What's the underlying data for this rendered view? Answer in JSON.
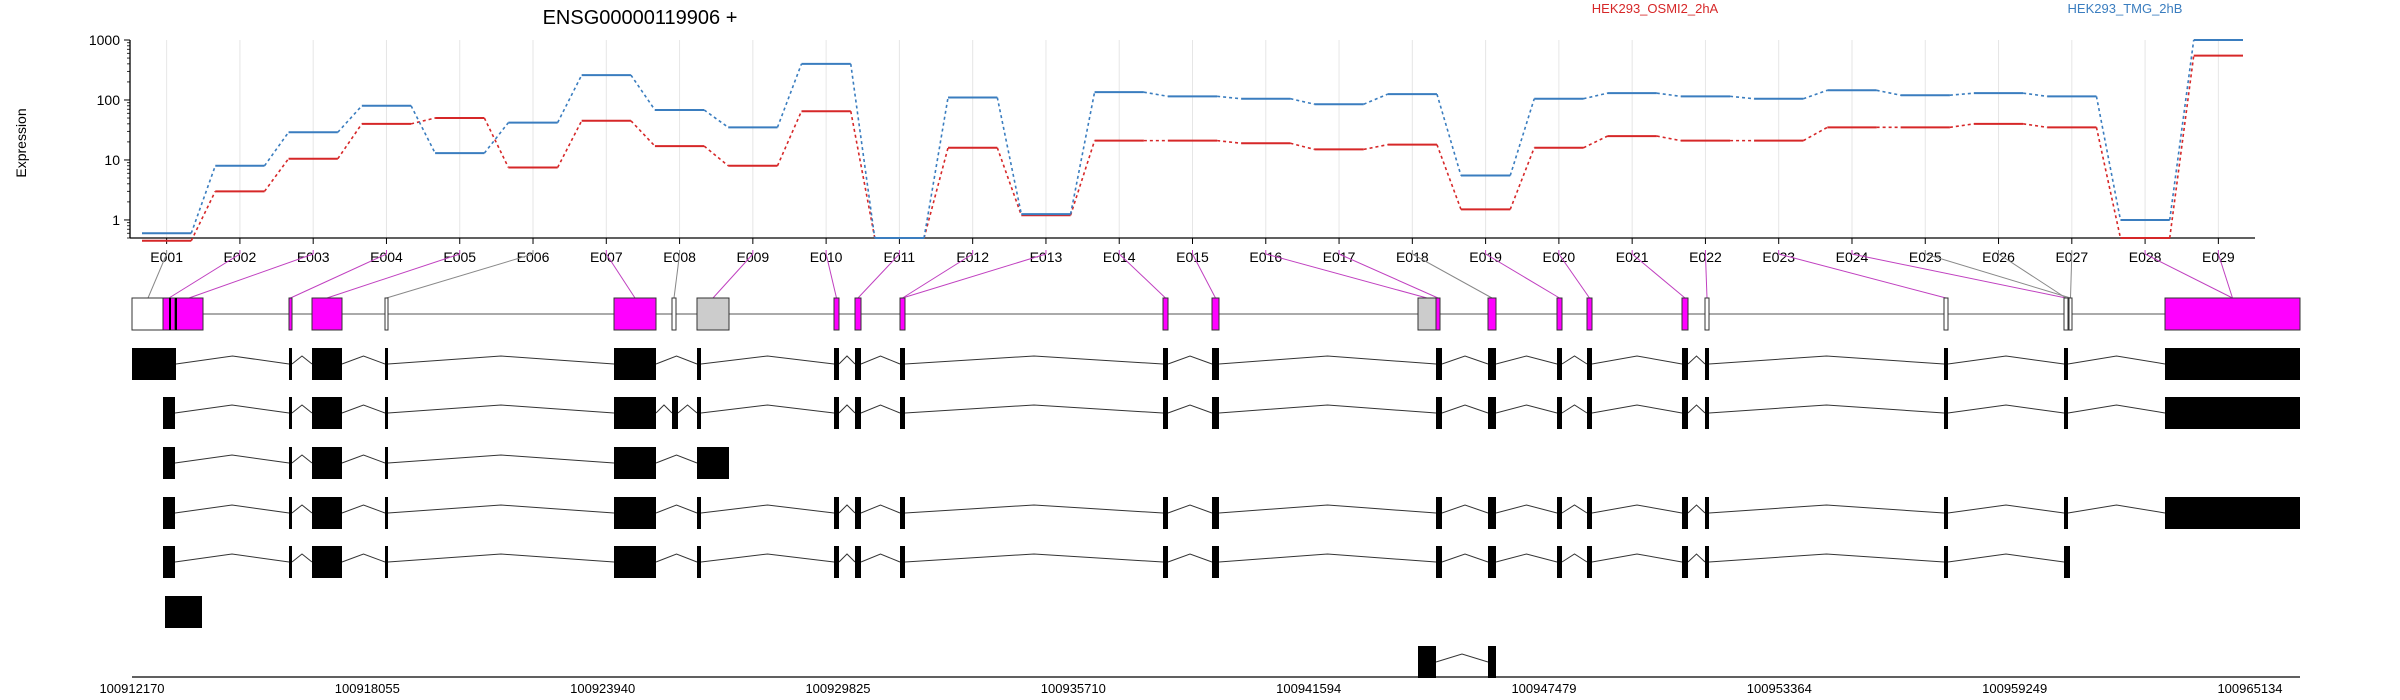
{
  "chart_data": {
    "type": "line",
    "title": "ENSG00000119906 +",
    "ylabel": "Expression",
    "yscale": "log",
    "ylim": [
      0.5,
      1000
    ],
    "yticks": [
      "1",
      "10",
      "100",
      "1000"
    ],
    "categories": [
      "E001",
      "E002",
      "E003",
      "E004",
      "E005",
      "E006",
      "E007",
      "E008",
      "E009",
      "E010",
      "E011",
      "E012",
      "E013",
      "E014",
      "E015",
      "E016",
      "E017",
      "E018",
      "E019",
      "E020",
      "E021",
      "E022",
      "E023",
      "E024",
      "E025",
      "E026",
      "E027",
      "E028",
      "E029"
    ],
    "series": [
      {
        "name": "HEK293_OSMI2_2hA",
        "color": "#d62728",
        "values": [
          0.45,
          3,
          10.5,
          40,
          50,
          7.5,
          45,
          17,
          8,
          65,
          0.5,
          16,
          1.2,
          21,
          21,
          19,
          15,
          18,
          1.5,
          16,
          25,
          21,
          21,
          35,
          35,
          40,
          35,
          0.5,
          550
        ]
      },
      {
        "name": "HEK293_TMG_2hB",
        "color": "#3a7dbf",
        "values": [
          0.6,
          8,
          29,
          80,
          13,
          42,
          260,
          68,
          35,
          400,
          0.5,
          110,
          1.25,
          135,
          115,
          105,
          85,
          125,
          5.5,
          105,
          130,
          115,
          105,
          145,
          120,
          130,
          115,
          1,
          1000
        ]
      }
    ],
    "genomic_ticks": [
      "100912170",
      "100918055",
      "100923940",
      "100929825",
      "100935710",
      "100941594",
      "100947479",
      "100953364",
      "100959249",
      "100965134"
    ],
    "highlight_color": "#ff00ff"
  }
}
